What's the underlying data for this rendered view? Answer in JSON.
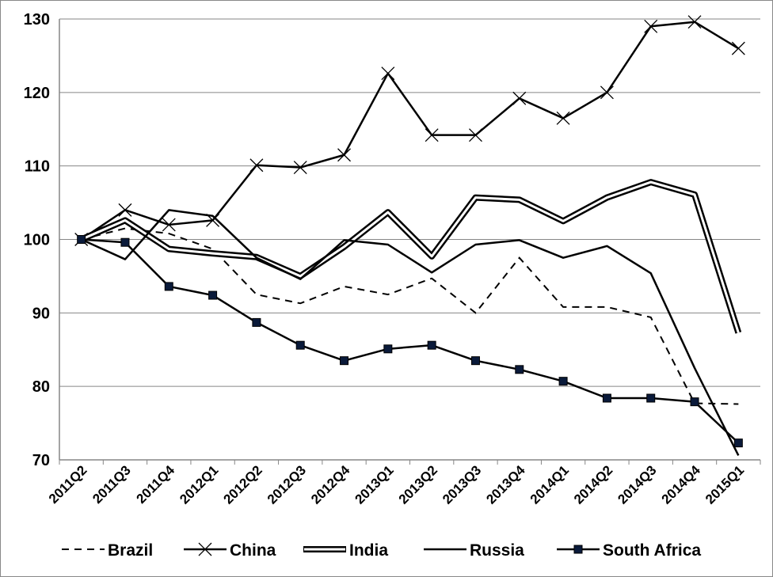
{
  "chart_data": {
    "type": "line",
    "categories": [
      "2011Q2",
      "2011Q3",
      "2011Q4",
      "2012Q1",
      "2012Q2",
      "2012Q3",
      "2012Q4",
      "2013Q1",
      "2013Q2",
      "2013Q3",
      "2013Q4",
      "2014Q1",
      "2014Q2",
      "2014Q3",
      "2014Q4",
      "2015Q1"
    ],
    "ylim": [
      70,
      130
    ],
    "yticks": [
      70,
      80,
      90,
      100,
      110,
      120,
      130
    ],
    "grid": true,
    "legend_position": "bottom",
    "series": [
      {
        "name": "Brazil",
        "style": "dashed",
        "values": [
          100,
          101.5,
          100.8,
          98.7,
          92.5,
          91.3,
          93.6,
          92.5,
          94.7,
          90.0,
          97.5,
          90.8,
          90.8,
          89.4,
          77.7,
          77.6
        ]
      },
      {
        "name": "China",
        "style": "x-markers",
        "values": [
          100,
          104,
          102,
          102.6,
          110.1,
          109.8,
          111.5,
          122.6,
          114.2,
          114.2,
          119.2,
          116.5,
          120,
          129,
          129.6,
          126
        ]
      },
      {
        "name": "India",
        "style": "double",
        "values": [
          100,
          102.6,
          98.7,
          98.1,
          97.6,
          95,
          99,
          103.7,
          97.7,
          105.7,
          105.4,
          102.5,
          105.7,
          107.8,
          106.1,
          87.3
        ]
      },
      {
        "name": "Russia",
        "style": "solid",
        "values": [
          100,
          97.3,
          104,
          103.2,
          97.5,
          94.6,
          99.9,
          99.3,
          95.5,
          99.3,
          99.9,
          97.5,
          99.1,
          95.4,
          82.5,
          70.6
        ]
      },
      {
        "name": "South Africa",
        "style": "square-markers",
        "values": [
          100,
          99.6,
          93.6,
          92.4,
          88.7,
          85.6,
          83.5,
          85.1,
          85.6,
          83.5,
          82.3,
          80.7,
          78.4,
          78.4,
          77.9,
          72.3
        ]
      }
    ]
  }
}
